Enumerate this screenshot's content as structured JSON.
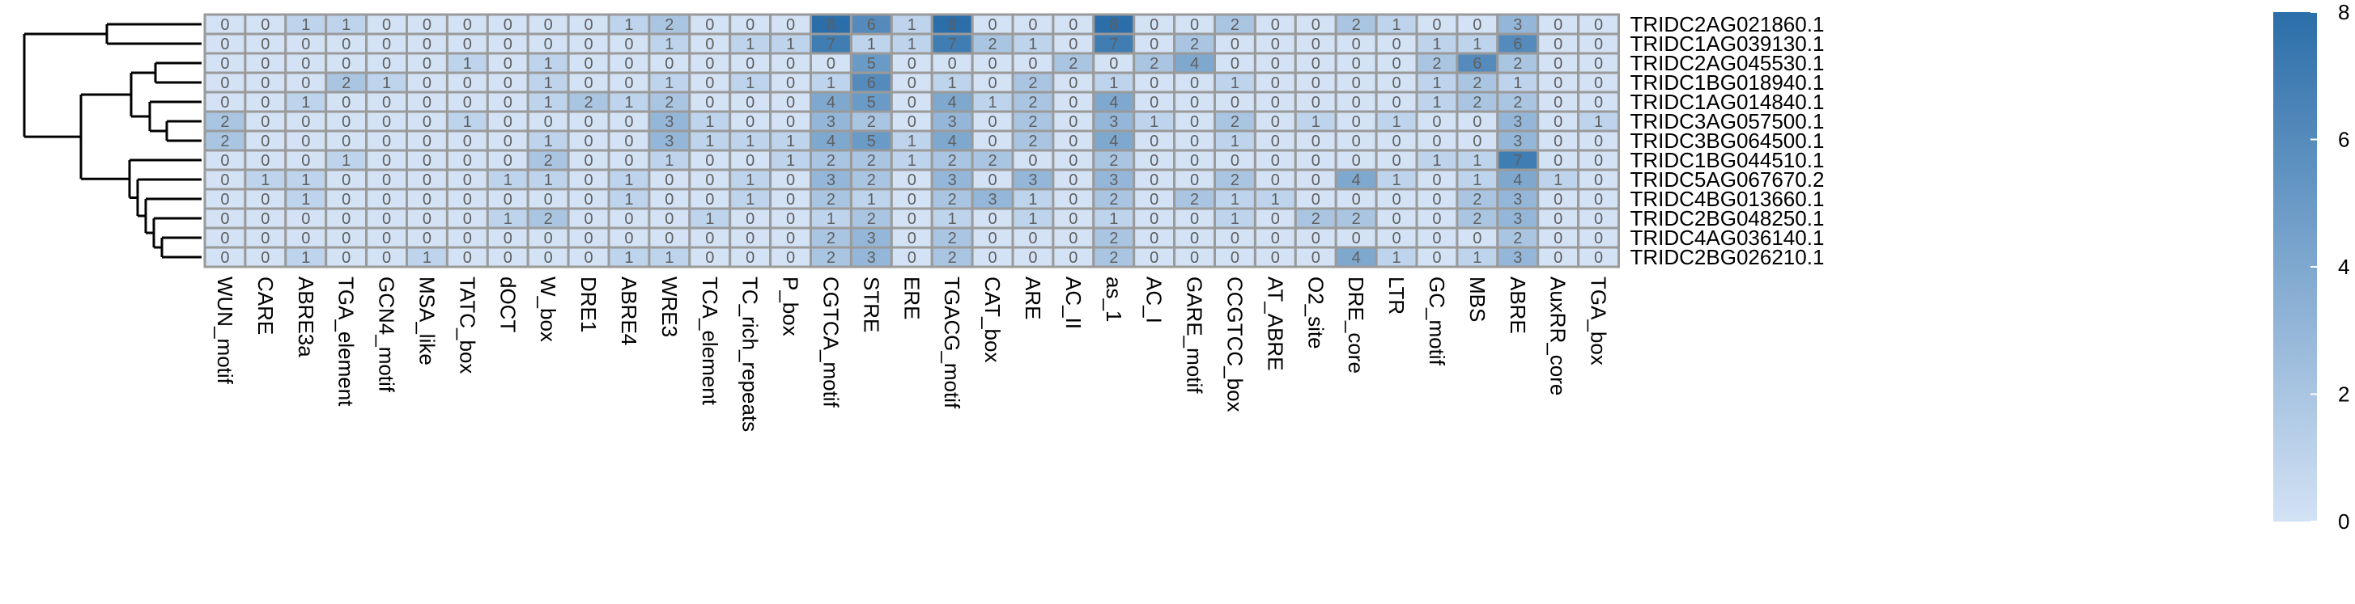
{
  "chart_data": {
    "type": "heatmap",
    "title": "",
    "xlabel": "",
    "ylabel": "",
    "columns": [
      "WUN_motif",
      "CARE",
      "ABRE3a",
      "TGA_element",
      "GCN4_motif",
      "MSA_like",
      "TATC_box",
      "dOCT",
      "W_box",
      "DRE1",
      "ABRE4",
      "WRE3",
      "TCA_element",
      "TC_rich_repeats",
      "P_box",
      "CGTCA_motif",
      "STRE",
      "ERE",
      "TGACG_motif",
      "CAT_box",
      "ARE",
      "AC_II",
      "as_1",
      "AC_I",
      "GARE_motif",
      "CCGTCC_box",
      "AT_ABRE",
      "O2_site",
      "DRE_core",
      "LTR",
      "GC_motif",
      "MBS",
      "ABRE",
      "AuxRR_core",
      "TGA_box"
    ],
    "rows": [
      "TRIDC2AG021860.1",
      "TRIDC1AG039130.1",
      "TRIDC2AG045530.1",
      "TRIDC1BG018940.1",
      "TRIDC1AG014840.1",
      "TRIDC3AG057500.1",
      "TRIDC3BG064500.1",
      "TRIDC1BG044510.1",
      "TRIDC5AG067670.2",
      "TRIDC4BG013660.1",
      "TRIDC2BG048250.1",
      "TRIDC4AG036140.1",
      "TRIDC2BG026210.1"
    ],
    "values": [
      [
        0,
        0,
        1,
        1,
        0,
        0,
        0,
        0,
        0,
        0,
        1,
        2,
        0,
        0,
        0,
        8,
        6,
        1,
        8,
        0,
        0,
        0,
        8,
        0,
        0,
        2,
        0,
        0,
        2,
        1,
        0,
        0,
        3,
        0,
        0
      ],
      [
        0,
        0,
        0,
        0,
        0,
        0,
        0,
        0,
        0,
        0,
        0,
        1,
        0,
        1,
        1,
        7,
        1,
        1,
        7,
        2,
        1,
        0,
        7,
        0,
        2,
        0,
        0,
        0,
        0,
        0,
        1,
        1,
        6,
        0,
        0
      ],
      [
        0,
        0,
        0,
        0,
        0,
        0,
        1,
        0,
        1,
        0,
        0,
        0,
        0,
        0,
        0,
        0,
        5,
        0,
        0,
        0,
        0,
        2,
        0,
        2,
        4,
        0,
        0,
        0,
        0,
        0,
        2,
        6,
        2,
        0,
        0
      ],
      [
        0,
        0,
        0,
        2,
        1,
        0,
        0,
        0,
        1,
        0,
        0,
        1,
        0,
        1,
        0,
        1,
        6,
        0,
        1,
        0,
        2,
        0,
        1,
        0,
        0,
        1,
        0,
        0,
        0,
        0,
        1,
        2,
        1,
        0,
        0
      ],
      [
        0,
        0,
        1,
        0,
        0,
        0,
        0,
        0,
        1,
        2,
        1,
        2,
        0,
        0,
        0,
        4,
        5,
        0,
        4,
        1,
        2,
        0,
        4,
        0,
        0,
        0,
        0,
        0,
        0,
        0,
        1,
        2,
        2,
        0,
        0
      ],
      [
        2,
        0,
        0,
        0,
        0,
        0,
        1,
        0,
        0,
        0,
        0,
        3,
        1,
        0,
        0,
        3,
        2,
        0,
        3,
        0,
        2,
        0,
        3,
        1,
        0,
        2,
        0,
        1,
        0,
        1,
        0,
        0,
        3,
        0,
        1
      ],
      [
        2,
        0,
        0,
        0,
        0,
        0,
        0,
        0,
        1,
        0,
        0,
        3,
        1,
        1,
        1,
        4,
        5,
        1,
        4,
        0,
        2,
        0,
        4,
        0,
        0,
        1,
        0,
        0,
        0,
        0,
        0,
        0,
        3,
        0,
        0
      ],
      [
        0,
        0,
        0,
        1,
        0,
        0,
        0,
        0,
        2,
        0,
        0,
        1,
        0,
        0,
        1,
        2,
        2,
        1,
        2,
        2,
        0,
        0,
        2,
        0,
        0,
        0,
        0,
        0,
        0,
        0,
        1,
        1,
        7,
        0,
        0
      ],
      [
        0,
        1,
        1,
        0,
        0,
        0,
        0,
        1,
        1,
        0,
        1,
        0,
        0,
        1,
        0,
        3,
        2,
        0,
        3,
        0,
        3,
        0,
        3,
        0,
        0,
        2,
        0,
        0,
        4,
        1,
        0,
        1,
        4,
        1,
        0
      ],
      [
        0,
        0,
        1,
        0,
        0,
        0,
        0,
        0,
        0,
        0,
        1,
        0,
        0,
        1,
        0,
        2,
        1,
        0,
        2,
        3,
        1,
        0,
        2,
        0,
        2,
        1,
        1,
        0,
        0,
        0,
        0,
        2,
        3,
        0,
        0
      ],
      [
        0,
        0,
        0,
        0,
        0,
        0,
        0,
        1,
        2,
        0,
        0,
        0,
        1,
        0,
        0,
        1,
        2,
        0,
        1,
        0,
        1,
        0,
        1,
        0,
        0,
        1,
        0,
        2,
        2,
        0,
        0,
        2,
        3,
        0,
        0
      ],
      [
        0,
        0,
        0,
        0,
        0,
        0,
        0,
        0,
        0,
        0,
        0,
        0,
        0,
        0,
        0,
        2,
        3,
        0,
        2,
        0,
        0,
        0,
        2,
        0,
        0,
        0,
        0,
        0,
        0,
        0,
        0,
        0,
        2,
        0,
        0
      ],
      [
        0,
        0,
        1,
        0,
        0,
        1,
        0,
        0,
        0,
        0,
        1,
        1,
        0,
        0,
        0,
        2,
        3,
        0,
        2,
        0,
        0,
        0,
        2,
        0,
        0,
        0,
        0,
        0,
        4,
        1,
        0,
        1,
        3,
        0,
        0
      ]
    ],
    "color_scale": {
      "min": 0,
      "max": 8,
      "ticks": [
        "0",
        "2",
        "4",
        "6",
        "8"
      ],
      "low_color": "#d3e2f5",
      "high_color": "#2b6ea9",
      "border_color": "#9a9a9a",
      "text_color": "#5f5f5f"
    },
    "row_dendrogram": true,
    "legend": "right"
  }
}
